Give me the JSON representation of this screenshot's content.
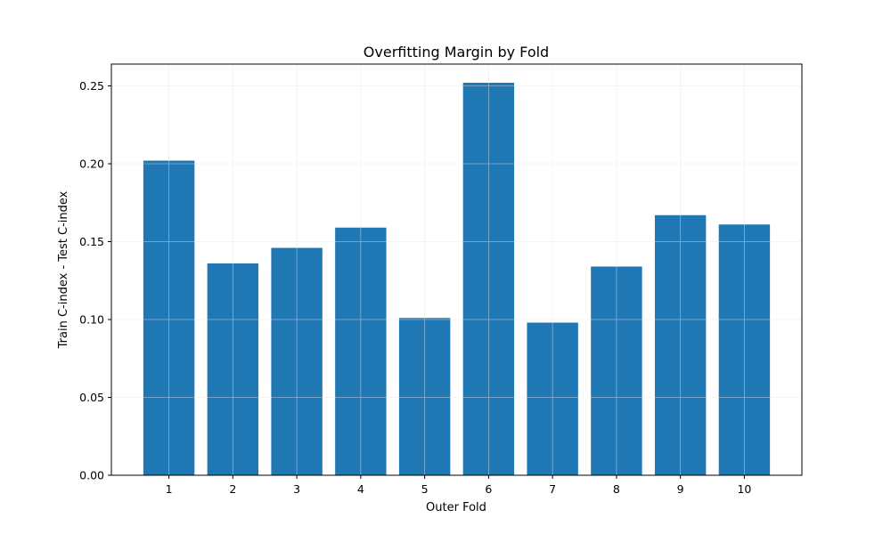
{
  "chart_data": {
    "type": "bar",
    "title": "Overfitting Margin by Fold",
    "xlabel": "Outer Fold",
    "ylabel": "Train C-index - Test C-index",
    "categories": [
      "1",
      "2",
      "3",
      "4",
      "5",
      "6",
      "7",
      "8",
      "9",
      "10"
    ],
    "values": [
      0.202,
      0.136,
      0.146,
      0.159,
      0.101,
      0.252,
      0.098,
      0.134,
      0.167,
      0.161
    ],
    "ylim": [
      0,
      0.264
    ],
    "yticks": [
      "0.00",
      "0.05",
      "0.10",
      "0.15",
      "0.20",
      "0.25"
    ],
    "grid": true,
    "reference_line": 0,
    "colors": {
      "bar": "#1f77b4",
      "grid": "#e6e6e6",
      "reference_line": "#d62728"
    }
  }
}
